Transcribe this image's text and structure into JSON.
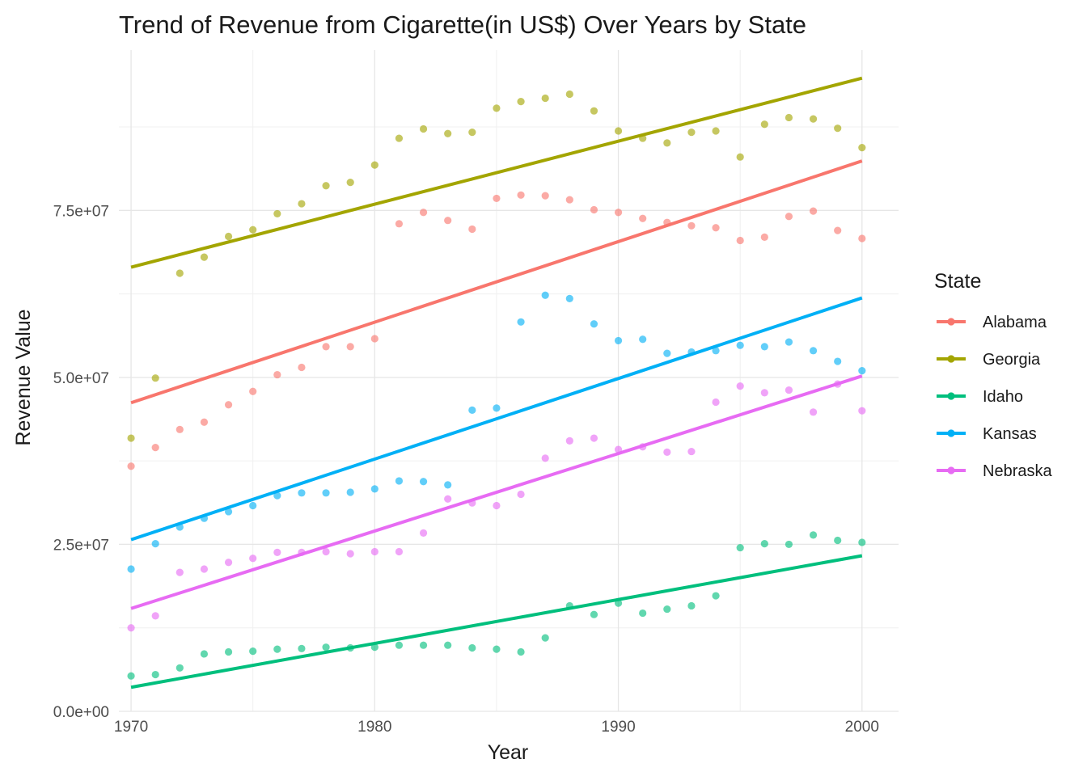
{
  "chart_data": {
    "type": "scatter",
    "title": "Trend of Revenue from Cigarette(in US$) Over Years by State",
    "xlabel": "Year",
    "ylabel": "Revenue Value",
    "xlim": [
      1969.5,
      2001.5
    ],
    "ylim": [
      0,
      99000000
    ],
    "x_ticks": [
      1970,
      1980,
      1990,
      2000
    ],
    "x_tick_labels": [
      "1970",
      "1980",
      "1990",
      "2000"
    ],
    "y_ticks": [
      0,
      25000000,
      50000000,
      75000000
    ],
    "y_tick_labels": [
      "0.0e+00",
      "2.5e+07",
      "5.0e+07",
      "7.5e+07"
    ],
    "grid": true,
    "legend": {
      "title": "State",
      "position": "right"
    },
    "x": [
      1970,
      1971,
      1972,
      1973,
      1974,
      1975,
      1976,
      1977,
      1978,
      1979,
      1980,
      1981,
      1982,
      1983,
      1984,
      1985,
      1986,
      1987,
      1988,
      1989,
      1990,
      1991,
      1992,
      1993,
      1994,
      1995,
      1996,
      1997,
      1998,
      1999,
      2000
    ],
    "series": [
      {
        "name": "Alabama",
        "color": "#F8766D",
        "values": [
          36700000,
          39500000,
          42200000,
          43300000,
          45900000,
          47900000,
          50400000,
          51500000,
          54600000,
          54600000,
          55800000,
          73000000,
          74700000,
          73500000,
          72200000,
          76800000,
          77300000,
          77200000,
          76600000,
          75100000,
          74700000,
          73800000,
          73200000,
          72700000,
          72400000,
          70500000,
          71000000,
          74100000,
          74900000,
          72000000,
          70800000
        ],
        "trend": [
          46200000,
          82400000
        ]
      },
      {
        "name": "Georgia",
        "color": "#A3A500",
        "values": [
          40900000,
          49900000,
          65600000,
          68000000,
          71100000,
          72100000,
          74500000,
          76000000,
          78700000,
          79200000,
          81800000,
          85800000,
          87200000,
          86500000,
          86700000,
          90300000,
          91300000,
          91800000,
          92400000,
          89900000,
          86900000,
          85800000,
          85100000,
          86700000,
          86900000,
          83000000,
          87900000,
          88900000,
          88700000,
          87300000,
          84400000
        ],
        "trend": [
          66500000,
          94800000
        ]
      },
      {
        "name": "Idaho",
        "color": "#00BF7D",
        "values": [
          5300000,
          5500000,
          6500000,
          8600000,
          8900000,
          9000000,
          9300000,
          9400000,
          9600000,
          9500000,
          9600000,
          9900000,
          9900000,
          9900000,
          9500000,
          9300000,
          8900000,
          11000000,
          15800000,
          14500000,
          16200000,
          14700000,
          15300000,
          15800000,
          17300000,
          24500000,
          25100000,
          25000000,
          26400000,
          25600000,
          25300000
        ],
        "trend": [
          3600000,
          23300000
        ]
      },
      {
        "name": "Kansas",
        "color": "#00B0F6",
        "values": [
          21300000,
          25100000,
          27600000,
          28900000,
          29900000,
          30800000,
          32300000,
          32700000,
          32700000,
          32800000,
          33300000,
          34500000,
          34400000,
          33900000,
          45100000,
          45400000,
          58300000,
          62300000,
          61800000,
          58000000,
          55500000,
          55700000,
          53600000,
          53800000,
          54000000,
          54800000,
          54600000,
          55300000,
          54000000,
          52400000,
          51000000
        ],
        "trend": [
          25700000,
          61900000
        ]
      },
      {
        "name": "Nebraska",
        "color": "#E76BF3",
        "values": [
          12500000,
          14300000,
          20800000,
          21300000,
          22300000,
          22900000,
          23800000,
          23800000,
          23900000,
          23600000,
          23900000,
          23900000,
          26700000,
          31800000,
          31200000,
          30800000,
          32500000,
          37900000,
          40500000,
          40900000,
          39200000,
          39600000,
          38800000,
          38900000,
          46300000,
          48700000,
          47700000,
          48100000,
          44800000,
          49000000,
          45000000
        ],
        "trend": [
          15400000,
          50200000
        ]
      }
    ]
  }
}
